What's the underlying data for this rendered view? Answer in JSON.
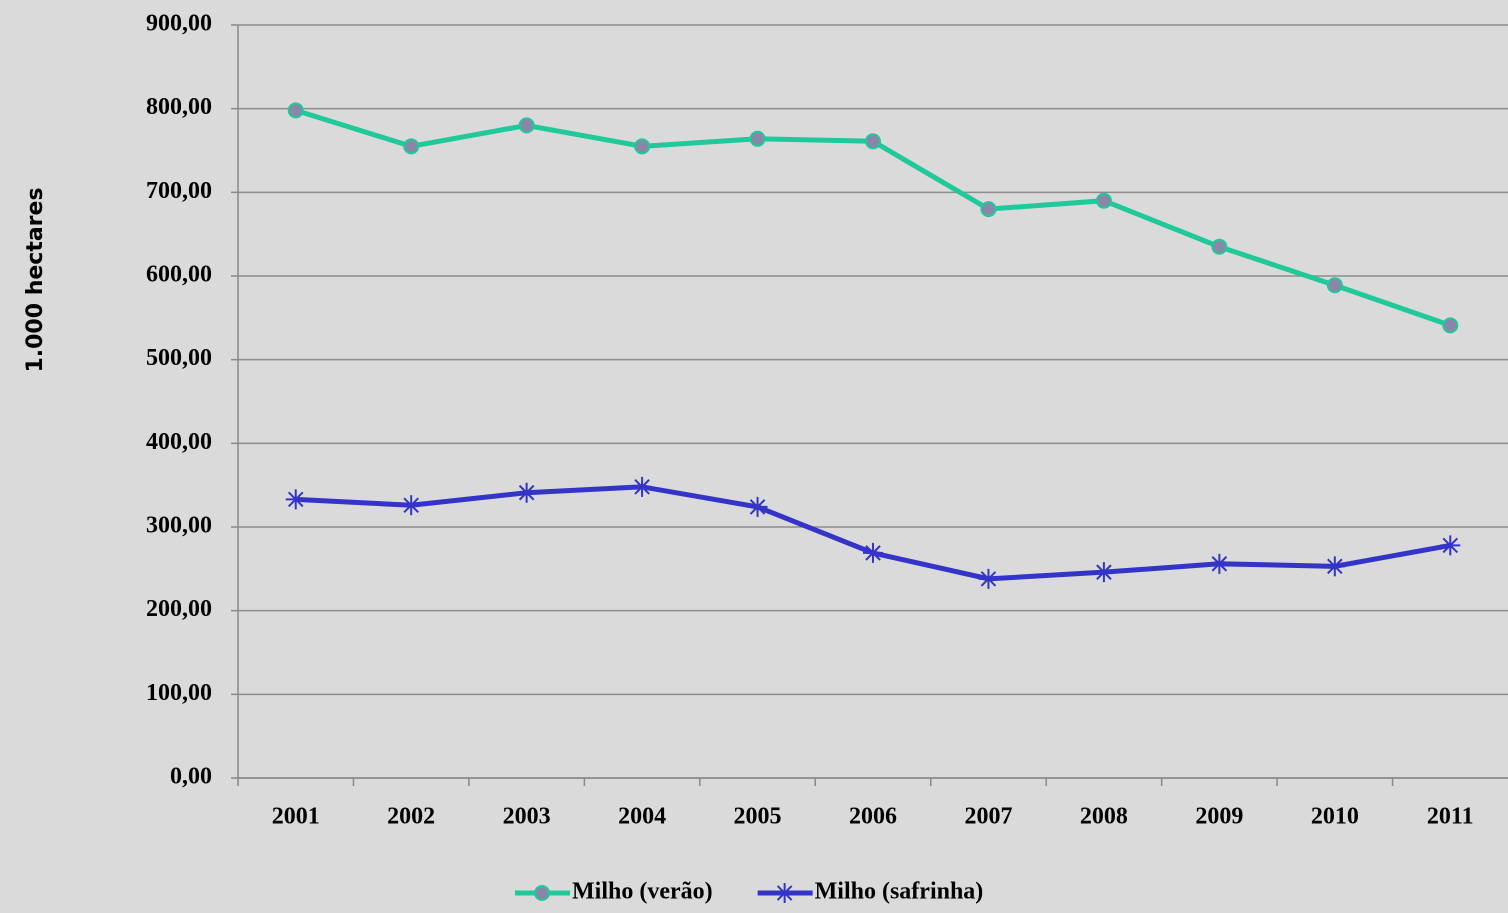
{
  "chart_data": {
    "type": "line",
    "y_label": "1.000 hectares",
    "categories": [
      "2001",
      "2002",
      "2003",
      "2004",
      "2005",
      "2006",
      "2007",
      "2008",
      "2009",
      "2010",
      "2011"
    ],
    "series": [
      {
        "name": "Milho (verão)",
        "color": "#1fc99a",
        "marker": "circle",
        "marker_fill": "#8a86a8",
        "values": [
          798,
          755,
          780,
          755,
          764,
          761,
          680,
          690,
          635,
          589,
          541
        ]
      },
      {
        "name": "Milho (safrinha)",
        "color": "#3434c8",
        "marker": "asterisk",
        "values": [
          333,
          326,
          341,
          348,
          324,
          269,
          238,
          246,
          256,
          253,
          278
        ]
      }
    ],
    "ylim": [
      0,
      900
    ],
    "yticks": [
      {
        "value": 0,
        "label": "0,00"
      },
      {
        "value": 100,
        "label": "100,00"
      },
      {
        "value": 200,
        "label": "200,00"
      },
      {
        "value": 300,
        "label": "300,00"
      },
      {
        "value": 400,
        "label": "400,00"
      },
      {
        "value": 500,
        "label": "500,00"
      },
      {
        "value": 600,
        "label": "600,00"
      },
      {
        "value": 700,
        "label": "700,00"
      },
      {
        "value": 800,
        "label": "800,00"
      },
      {
        "value": 900,
        "label": "900,00"
      }
    ],
    "grid": true,
    "legend": "bottom"
  }
}
